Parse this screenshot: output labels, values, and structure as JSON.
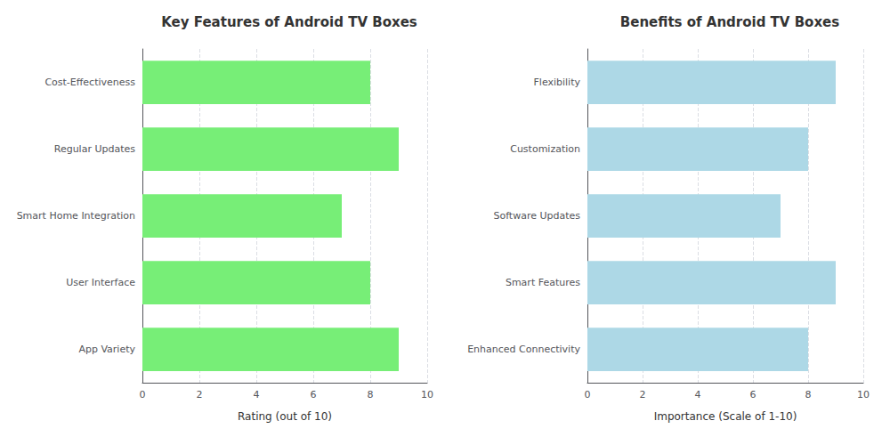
{
  "chart_data": [
    {
      "type": "bar",
      "orientation": "horizontal",
      "title": "Key Features of Android TV Boxes",
      "categories": [
        "App Variety",
        "User Interface",
        "Smart Home Integration",
        "Regular Updates",
        "Cost-Effectiveness"
      ],
      "values": [
        9,
        8,
        7,
        9,
        8
      ],
      "color": "#77ee77",
      "xlabel": "Rating (out of 10)",
      "xlim": [
        0,
        10
      ],
      "xticks": [
        0,
        2,
        4,
        6,
        8,
        10
      ],
      "grid": true
    },
    {
      "type": "bar",
      "orientation": "horizontal",
      "title": "Benefits of Android TV Boxes",
      "categories": [
        "Enhanced Connectivity",
        "Smart Features",
        "Software Updates",
        "Customization",
        "Flexibility"
      ],
      "values": [
        8,
        9,
        7,
        8,
        9
      ],
      "color": "#add8e6",
      "xlabel": "Importance (Scale of 1-10)",
      "xlim": [
        0,
        10
      ],
      "xticks": [
        0,
        2,
        4,
        6,
        8,
        10
      ],
      "grid": true
    }
  ]
}
